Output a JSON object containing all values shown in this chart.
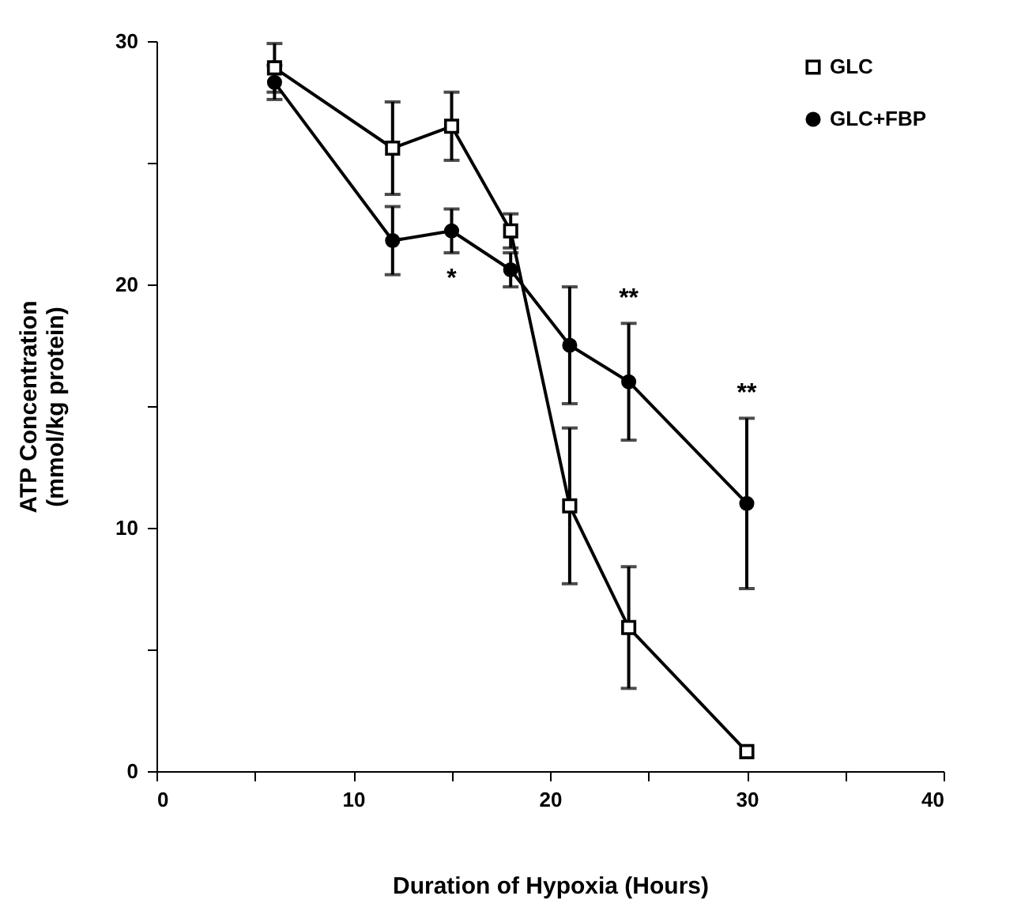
{
  "chart_data": {
    "type": "line",
    "xlabel": "Duration of Hypoxia (Hours)",
    "ylabel": "ATP Concentration\n(mmol/kg protein)",
    "x": [
      6,
      12,
      15,
      18,
      21,
      24,
      30
    ],
    "series": [
      {
        "name": "GLC",
        "color": "#000000",
        "marker": "square",
        "values": [
          28.9,
          25.6,
          26.5,
          22.2,
          10.9,
          5.9,
          0.8
        ],
        "errors": [
          1.0,
          1.9,
          1.4,
          0.7,
          3.2,
          2.5,
          null
        ]
      },
      {
        "name": "GLC+FBP",
        "color": "#000000",
        "marker": "circle",
        "values": [
          28.3,
          21.8,
          22.2,
          20.6,
          17.5,
          16.0,
          11.0
        ],
        "errors": [
          0.7,
          1.4,
          0.9,
          0.7,
          2.4,
          2.4,
          3.5
        ]
      }
    ],
    "xlim": [
      0,
      40
    ],
    "xticks": [
      0,
      {
        "value": 5,
        "label": null
      },
      10,
      {
        "value": 15,
        "label": null
      },
      20,
      {
        "value": 25,
        "label": null
      },
      30,
      {
        "value": 35,
        "label": null
      },
      40
    ],
    "ylim": [
      0,
      30
    ],
    "yticks": [
      0,
      {
        "value": 5,
        "label": null
      },
      10,
      {
        "value": 15,
        "label": null
      },
      20,
      {
        "value": 25,
        "label": null
      },
      30
    ],
    "annotations": [
      {
        "text": "*",
        "x": 15,
        "y": 21.3
      },
      {
        "text": "**",
        "x": 24,
        "y": 18.4
      },
      {
        "text": "**",
        "x": 30,
        "y": 14.5
      }
    ],
    "legend": "top right",
    "grid": false,
    "line_style": "solid"
  }
}
